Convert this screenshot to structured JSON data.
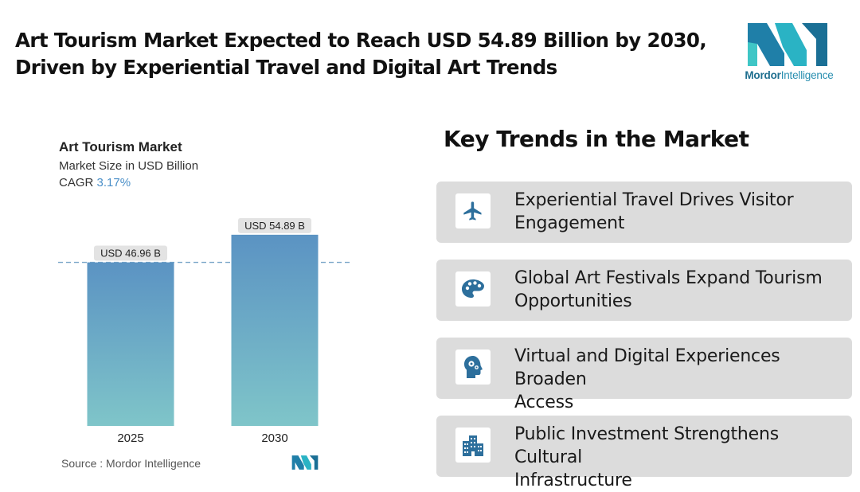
{
  "header": {
    "title_line1": "Art Tourism Market Expected to Reach USD 54.89 Billion by 2030,",
    "title_line2": "Driven by Experiential Travel and Digital Art Trends"
  },
  "brand": {
    "name_part1": "Mordor",
    "name_part2": "Intelligence"
  },
  "chart_data": {
    "type": "bar",
    "title": "Art Tourism Market",
    "subtitle": "Market Size in USD Billion",
    "cagr_label": "CAGR",
    "cagr_value": "3.17%",
    "categories": [
      "2025",
      "2030"
    ],
    "values": [
      46.96,
      54.89
    ],
    "data_labels": [
      "USD 46.96 B",
      "USD 54.89 B"
    ],
    "ylim": [
      0,
      60
    ],
    "reference_line": 46.96,
    "grid": false,
    "colors": {
      "bar_top": "#5b93c3",
      "bar_bottom": "#7fc5c9",
      "label_bg": "#e3e3e3",
      "dash": "#7aa6c8"
    }
  },
  "source": {
    "label": "Source :",
    "value": "Mordor Intelligence"
  },
  "trends": {
    "title": "Key Trends in the Market",
    "items": [
      {
        "icon": "airplane-icon",
        "line1": "Experiential Travel Drives Visitor",
        "line2": "Engagement"
      },
      {
        "icon": "palette-icon",
        "line1": "Global Art Festivals Expand Tourism",
        "line2": "Opportunities"
      },
      {
        "icon": "head-gears-icon",
        "line1": "Virtual and Digital Experiences Broaden",
        "line2": "Access"
      },
      {
        "icon": "buildings-icon",
        "line1": "Public Investment Strengthens Cultural",
        "line2": "Infrastructure"
      }
    ]
  },
  "colors": {
    "icon": "#2d6f9c",
    "card_bg": "#dcdcdc",
    "brand_teal": "#2aa8b8",
    "brand_blue": "#1f6f8f"
  }
}
